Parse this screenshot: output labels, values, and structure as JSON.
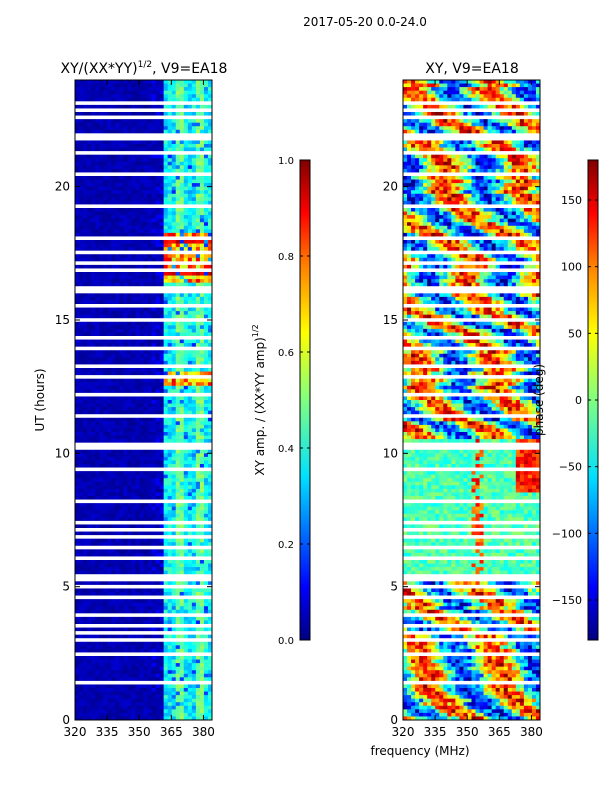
{
  "suptitle": "2017-05-20 0.0-24.0",
  "chart_data": [
    {
      "type": "heatmap",
      "title": "XY/(XX*YY)^1/2, V9=EA18",
      "title_main": "XY/(XX*YY)",
      "title_sup": "1/2",
      "title_tail": ", V9=EA18",
      "xlabel": "",
      "ylabel": "UT (hours)",
      "xlim": [
        320,
        384
      ],
      "ylim": [
        0,
        24
      ],
      "xticks": [
        320,
        335,
        350,
        365,
        380
      ],
      "yticks": [
        0,
        5,
        10,
        15,
        20
      ],
      "colorbar": {
        "label_main": "XY amp. / (XX*YY amp)",
        "label_sup": "1/2",
        "range": [
          0.0,
          1.0
        ],
        "ticks": [
          "0.0",
          "0.2",
          "0.4",
          "0.6",
          "0.8",
          "1.0"
        ]
      }
    },
    {
      "type": "heatmap",
      "title": "XY, V9=EA18",
      "xlabel": "frequency (MHz)",
      "ylabel": "",
      "xlim": [
        320,
        384
      ],
      "ylim": [
        0,
        24
      ],
      "xticks": [
        320,
        335,
        350,
        365,
        380
      ],
      "yticks": [
        0,
        5,
        10,
        15,
        20
      ],
      "colorbar": {
        "label": "phase (deg)",
        "range": [
          -180,
          180
        ],
        "ticks": [
          "150",
          "100",
          "50",
          "0",
          "−50",
          "−100",
          "−150"
        ]
      }
    }
  ],
  "colors": {
    "jet": [
      "#000080",
      "#0000ff",
      "#0080ff",
      "#00ffff",
      "#80ff80",
      "#ffff00",
      "#ff8000",
      "#ff0000",
      "#800000"
    ],
    "flag_gap": "#ffffff"
  }
}
